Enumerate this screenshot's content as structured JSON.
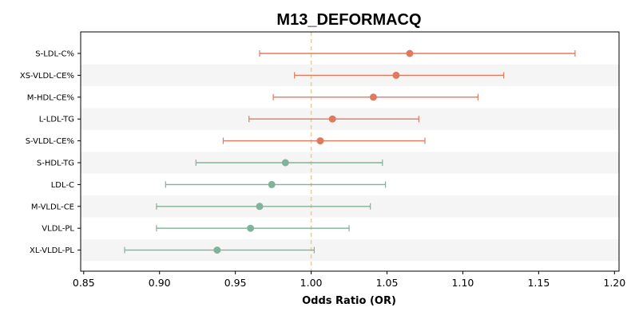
{
  "chart_data": {
    "type": "forest",
    "title": "M13_DEFORMACQ",
    "xlabel": "Odds Ratio (OR)",
    "ylabel": "",
    "xlim": [
      0.848,
      1.203
    ],
    "xticks": [
      0.85,
      0.9,
      0.95,
      1.0,
      1.05,
      1.1,
      1.15,
      1.2
    ],
    "xtick_labels": [
      "0.85",
      "0.90",
      "0.95",
      "1.00",
      "1.05",
      "1.10",
      "1.15",
      "1.20"
    ],
    "reference_line": 1.0,
    "grid": false,
    "alternating_row_shading": true,
    "colors": {
      "positive": "#e07a5f",
      "negative": "#81b29a",
      "reference": "#f2cc8f",
      "shade": "#f5f5f5"
    },
    "rows": [
      {
        "label": "S-LDL-C%",
        "or": 1.065,
        "lower": 0.966,
        "upper": 1.174,
        "group": "positive"
      },
      {
        "label": "XS-VLDL-CE%",
        "or": 1.056,
        "lower": 0.989,
        "upper": 1.127,
        "group": "positive"
      },
      {
        "label": "M-HDL-CE%",
        "or": 1.041,
        "lower": 0.975,
        "upper": 1.11,
        "group": "positive"
      },
      {
        "label": "L-LDL-TG",
        "or": 1.014,
        "lower": 0.959,
        "upper": 1.071,
        "group": "positive"
      },
      {
        "label": "S-VLDL-CE%",
        "or": 1.006,
        "lower": 0.942,
        "upper": 1.075,
        "group": "positive"
      },
      {
        "label": "S-HDL-TG",
        "or": 0.983,
        "lower": 0.924,
        "upper": 1.047,
        "group": "negative"
      },
      {
        "label": "LDL-C",
        "or": 0.974,
        "lower": 0.904,
        "upper": 1.049,
        "group": "negative"
      },
      {
        "label": "M-VLDL-CE",
        "or": 0.966,
        "lower": 0.898,
        "upper": 1.039,
        "group": "negative"
      },
      {
        "label": "VLDL-PL",
        "or": 0.96,
        "lower": 0.898,
        "upper": 1.025,
        "group": "negative"
      },
      {
        "label": "XL-VLDL-PL",
        "or": 0.938,
        "lower": 0.877,
        "upper": 1.002,
        "group": "negative"
      }
    ]
  }
}
